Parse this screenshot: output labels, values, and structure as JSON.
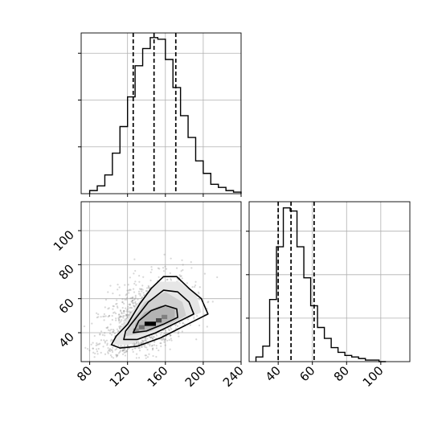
{
  "chart_data": {
    "type": "corner",
    "grid": true,
    "panels": [
      {
        "id": "hist_x",
        "type": "histogram",
        "title": "",
        "xlabel": "",
        "ylabel": "",
        "xlim": [
          71,
          240
        ],
        "ylim": [
          0,
          1.03
        ],
        "bins": [
          80,
          88,
          96,
          104,
          112,
          120,
          128,
          136,
          144,
          152,
          160,
          168,
          176,
          184,
          192,
          200,
          208,
          216,
          224,
          232,
          240
        ],
        "values": [
          0.02,
          0.05,
          0.12,
          0.26,
          0.43,
          0.62,
          0.82,
          0.93,
          1.0,
          0.99,
          0.86,
          0.68,
          0.5,
          0.36,
          0.21,
          0.13,
          0.06,
          0.04,
          0.02,
          0.01
        ],
        "quantile_lines": [
          126,
          148,
          171
        ]
      },
      {
        "id": "joint",
        "type": "scatter_density",
        "xlabel": "",
        "ylabel": "",
        "xlim": [
          71,
          240
        ],
        "ylim": [
          23,
          117
        ],
        "xticks": [
          "80",
          "120",
          "160",
          "200",
          "240"
        ],
        "yticks": [
          "40",
          "60",
          "80",
          "100"
        ],
        "density_center": [
          138,
          45
        ],
        "density_spread": [
          18,
          8
        ],
        "contour_levels": 3
      },
      {
        "id": "hist_y",
        "type": "histogram",
        "xlabel": "",
        "ylabel": "",
        "xlim": [
          23,
          117
        ],
        "ylim": [
          0,
          1.03
        ],
        "bins": [
          27,
          31,
          35,
          39,
          43,
          47,
          51,
          55,
          59,
          63,
          67,
          71,
          75,
          79,
          83,
          87,
          91,
          95,
          99,
          103
        ],
        "values": [
          0.03,
          0.1,
          0.4,
          0.74,
          0.99,
          0.97,
          0.74,
          0.54,
          0.36,
          0.22,
          0.15,
          0.09,
          0.06,
          0.04,
          0.03,
          0.02,
          0.01,
          0.01,
          0.0
        ],
        "xticks": [
          "40",
          "60",
          "80",
          "100"
        ],
        "quantile_lines": [
          40,
          47.5,
          61
        ]
      }
    ]
  }
}
